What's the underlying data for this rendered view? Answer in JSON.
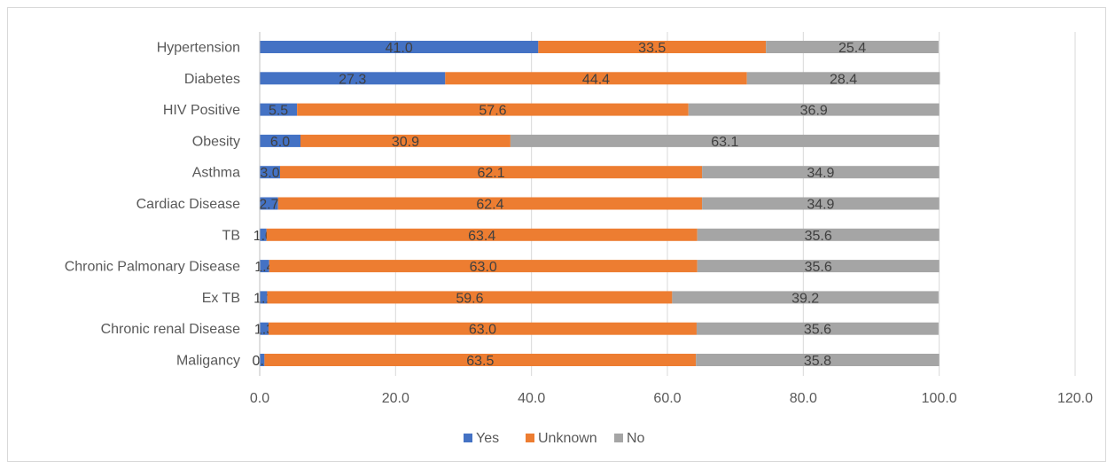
{
  "chart_data": {
    "type": "bar",
    "orientation": "horizontal",
    "stacked": true,
    "categories": [
      "Hypertension",
      "Diabetes",
      "HIV Positive",
      "Obesity",
      "Asthma",
      "Cardiac Disease",
      "TB",
      "Chronic Palmonary Disease",
      "Ex TB",
      "Chronic renal Disease",
      "Maligancy"
    ],
    "series": [
      {
        "name": "Yes",
        "color": "#4472c4",
        "values": [
          41.0,
          27.3,
          5.5,
          6.0,
          3.0,
          2.7,
          1.0,
          1.4,
          1.1,
          1.3,
          0.7
        ],
        "labels": [
          "41.0",
          "27.3",
          "5.5",
          "6.0",
          "3.0",
          "2.7",
          "1.0",
          "1.4",
          "1.1",
          "1.3",
          "0.7"
        ]
      },
      {
        "name": "Unknown",
        "color": "#ed7d31",
        "values": [
          33.5,
          44.4,
          57.6,
          30.9,
          62.1,
          62.4,
          63.4,
          63.0,
          59.6,
          63.0,
          63.5
        ],
        "labels": [
          "33.5",
          "44.4",
          "57.6",
          "30.9",
          "62.1",
          "62.4",
          "63.4",
          "63.0",
          "59.6",
          "63.0",
          "63.5"
        ]
      },
      {
        "name": "No",
        "color": "#a5a5a5",
        "values": [
          25.4,
          28.4,
          36.9,
          63.1,
          34.9,
          34.9,
          35.6,
          35.6,
          39.2,
          35.6,
          35.8
        ],
        "labels": [
          "25.4",
          "28.4",
          "36.9",
          "63.1",
          "34.9",
          "34.9",
          "35.6",
          "35.6",
          "39.2",
          "35.6",
          "35.8"
        ]
      }
    ],
    "xlim": [
      0,
      120
    ],
    "xticks": [
      0,
      20,
      40,
      60,
      80,
      100,
      120
    ],
    "xtick_labels": [
      "0.0",
      "20.0",
      "40.0",
      "60.0",
      "80.0",
      "100.0",
      "120.0"
    ],
    "grid": true,
    "legend_position": "bottom",
    "title": "",
    "xlabel": "",
    "ylabel": ""
  }
}
